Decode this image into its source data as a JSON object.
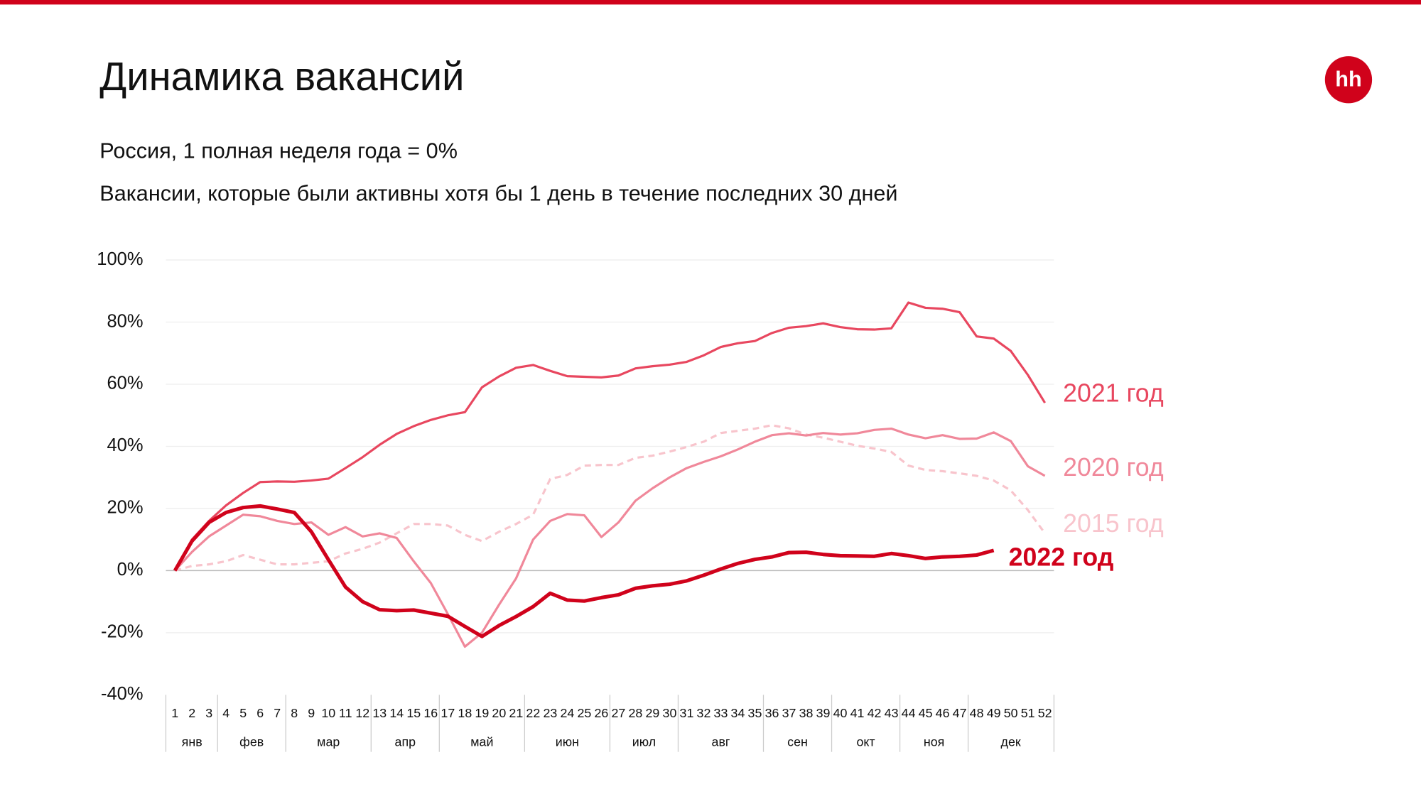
{
  "header": {
    "title": "Динамика вакансий",
    "logo": "hh"
  },
  "chart_data": {
    "type": "line",
    "subtitle": "Россия, 1 полная неделя года = 0%",
    "subtitle2": "Вакансии, которые были активны хотя бы 1 день в течение последних 30 дней",
    "categories": [
      "1",
      "2",
      "3",
      "4",
      "5",
      "6",
      "7",
      "8",
      "9",
      "10",
      "11",
      "12",
      "13",
      "14",
      "15",
      "16",
      "17",
      "18",
      "19",
      "20",
      "21",
      "22",
      "23",
      "24",
      "25",
      "26",
      "27",
      "28",
      "29",
      "30",
      "31",
      "32",
      "33",
      "34",
      "35",
      "36",
      "37",
      "38",
      "39",
      "40",
      "41",
      "42",
      "43",
      "44",
      "45",
      "46",
      "47",
      "48",
      "49",
      "50",
      "51",
      "52"
    ],
    "month_groups": [
      {
        "label": "янв",
        "from": "1",
        "to": "3"
      },
      {
        "label": "фев",
        "from": "4",
        "to": "7"
      },
      {
        "label": "мар",
        "from": "8",
        "to": "12"
      },
      {
        "label": "апр",
        "from": "13",
        "to": "16"
      },
      {
        "label": "май",
        "from": "17",
        "to": "21"
      },
      {
        "label": "июн",
        "from": "22",
        "to": "26"
      },
      {
        "label": "июл",
        "from": "27",
        "to": "30"
      },
      {
        "label": "авг",
        "from": "31",
        "to": "35"
      },
      {
        "label": "сен",
        "from": "36",
        "to": "39"
      },
      {
        "label": "окт",
        "from": "40",
        "to": "43"
      },
      {
        "label": "ноя",
        "from": "44",
        "to": "47"
      },
      {
        "label": "дек",
        "from": "48",
        "to": "52"
      }
    ],
    "ylim": [
      -40,
      100
    ],
    "yticks": [
      {
        "value": -40,
        "label": "-40%"
      },
      {
        "value": -20,
        "label": "-20%"
      },
      {
        "value": 0,
        "label": "0%"
      },
      {
        "value": 20,
        "label": "20%"
      },
      {
        "value": 40,
        "label": "40%"
      },
      {
        "value": 60,
        "label": "60%"
      },
      {
        "value": 80,
        "label": "80%"
      },
      {
        "value": 100,
        "label": "100%"
      }
    ],
    "grid": true,
    "series": [
      {
        "name": "2021 год",
        "color": "#e8475f",
        "values": [
          0,
          10,
          16,
          21,
          25,
          28.5,
          28.7,
          28.6,
          29,
          29.6,
          33,
          36.5,
          40.5,
          44,
          46.5,
          48.5,
          50,
          51,
          59,
          62.5,
          65.3,
          66.2,
          64.3,
          62.6,
          62.4,
          62.2,
          62.8,
          65.1,
          65.8,
          66.3,
          67.2,
          69.3,
          72,
          73.2,
          73.9,
          76.5,
          78.2,
          78.7,
          79.6,
          78.4,
          77.7,
          77.6,
          78,
          86.3,
          84.6,
          84.3,
          83.2,
          75.4,
          74.7,
          70.7,
          63,
          54
        ]
      },
      {
        "name": "2020 год",
        "color": "#f0889a",
        "values": [
          0,
          6,
          11,
          14.5,
          18,
          17.5,
          16,
          15,
          15.5,
          11.5,
          14,
          11,
          12,
          10.5,
          3,
          -4,
          -14,
          -24.5,
          -20,
          -11,
          -2.5,
          10,
          16,
          18.2,
          17.8,
          10.8,
          15.5,
          22.5,
          26.5,
          30,
          33,
          35,
          36.8,
          39,
          41.5,
          43.6,
          44.2,
          43.5,
          44.3,
          43.8,
          44.2,
          45.3,
          45.7,
          43.8,
          42.6,
          43.6,
          42.4,
          42.5,
          44.5,
          41.7,
          33.6,
          30.5
        ]
      },
      {
        "name": "2015 год",
        "color": "#f8c4cc",
        "dashed": true,
        "values": [
          0,
          1.5,
          2,
          3,
          5,
          3.5,
          2,
          2,
          2.5,
          3,
          5.5,
          7,
          9,
          12,
          15,
          15,
          14.5,
          11.5,
          9.5,
          12.5,
          15,
          18,
          29.5,
          30.8,
          33.8,
          34,
          34,
          36.3,
          37,
          38.3,
          39.8,
          41.5,
          44.3,
          45,
          45.7,
          46.8,
          45.8,
          43.8,
          42.8,
          41.5,
          40.2,
          39.3,
          38.2,
          33.8,
          32.4,
          32,
          31.3,
          30.5,
          29,
          25.8,
          19.5,
          12
        ]
      },
      {
        "name": "2022 год",
        "color": "#d0021b",
        "bold": true,
        "values": [
          0,
          9.5,
          15.5,
          18.7,
          20.3,
          20.8,
          19.8,
          18.7,
          12.5,
          3.5,
          -5.3,
          -10,
          -12.6,
          -12.9,
          -12.7,
          -13.7,
          -14.7,
          -18,
          -21.2,
          -17.7,
          -14.8,
          -11.6,
          -7.3,
          -9.5,
          -9.8,
          -8.7,
          -7.8,
          -5.7,
          -4.9,
          -4.4,
          -3.3,
          -1.5,
          0.5,
          2.3,
          3.6,
          4.4,
          5.8,
          5.9,
          5.2,
          4.8,
          4.7,
          4.6,
          5.5,
          4.8,
          3.9,
          4.4,
          4.6,
          5,
          6.5,
          null,
          null,
          null
        ]
      }
    ]
  }
}
